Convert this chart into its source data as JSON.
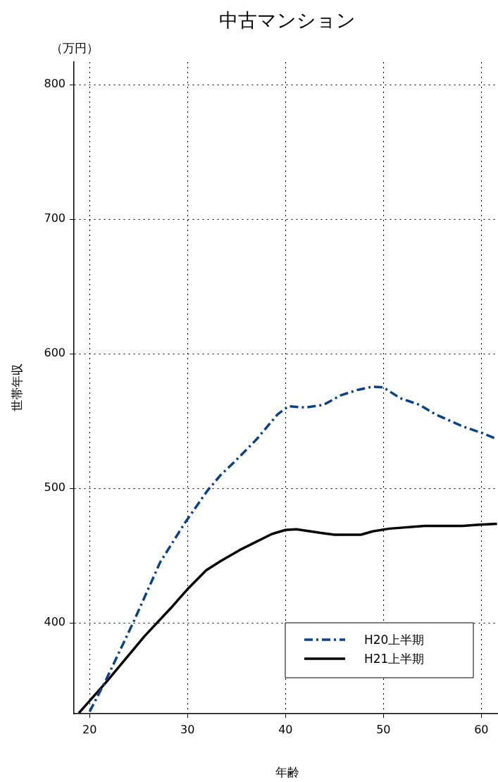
{
  "chart_data": {
    "type": "line",
    "title": "中古マンション",
    "xlabel": "年齢",
    "ylabel": "世帯年収",
    "annotations": [
      "（万円）"
    ],
    "xlim": [
      18.4,
      61.7
    ],
    "xticks": [
      20,
      30,
      40,
      50,
      60
    ],
    "ylim": [
      332.5,
      816.8
    ],
    "yticks": [
      400,
      500,
      600,
      700,
      800
    ],
    "grid": true,
    "legend": "bottom right",
    "marker": "none",
    "series": [
      {
        "name": "H20上半期",
        "color": "#0b4284",
        "line_style": "dashed",
        "x": [
          20,
          21.7,
          24.5,
          27.2,
          29.7,
          32,
          33.4,
          34.7,
          37,
          39.2,
          40.3,
          42,
          43.9,
          45.6,
          47.3,
          48.9,
          50,
          51.7,
          53.7,
          55.3,
          58.1,
          60.1,
          61.6
        ],
        "values": [
          334,
          358,
          401,
          445,
          474,
          498,
          510,
          519,
          536,
          555,
          561,
          560,
          562,
          569,
          573,
          575.5,
          575,
          567,
          562,
          555,
          546,
          541,
          536.5
        ]
      },
      {
        "name": "H21上半期",
        "color": "#000000",
        "line_style": "solid",
        "x": [
          18.9,
          21.7,
          25.6,
          28.3,
          30,
          31.9,
          33.4,
          35.3,
          38.6,
          40,
          41.1,
          43.9,
          45,
          47.7,
          48.9,
          50.6,
          54.2,
          58.1,
          59.8,
          61.6
        ],
        "values": [
          333,
          356,
          390,
          411,
          425,
          439,
          446,
          454,
          466,
          469,
          469.5,
          466.5,
          465.5,
          465.5,
          468,
          470,
          472,
          472,
          473,
          473.6
        ]
      }
    ]
  }
}
